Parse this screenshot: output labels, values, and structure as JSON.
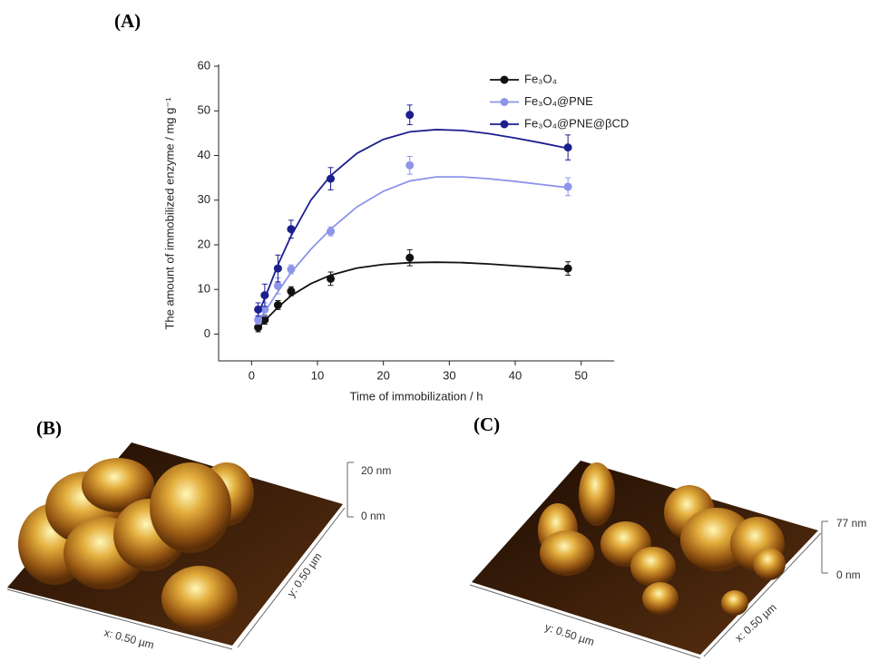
{
  "panel_labels": [
    "(A)",
    "(B)",
    "(C)"
  ],
  "chart_data": {
    "type": "scatter",
    "x_label": "Time of immobilization / h",
    "y_label": "The amount of immobilized enzyme / mg g⁻¹",
    "x": [
      1,
      2,
      4,
      6,
      12,
      24,
      48
    ],
    "series": [
      {
        "name": "Fe₃O₄",
        "color": "#111111",
        "values": [
          1.5,
          3.2,
          6.5,
          9.6,
          12.4,
          17.1,
          14.7
        ],
        "errors": [
          1,
          1,
          1,
          1,
          1.5,
          1.8,
          1.5
        ],
        "fit": {
          "x": [
            1,
            2,
            4,
            6,
            9,
            12,
            16,
            20,
            24,
            28,
            32,
            36,
            40,
            44,
            48
          ],
          "values": [
            1.3,
            3,
            6,
            8.6,
            11.3,
            13.2,
            14.8,
            15.6,
            16,
            16.1,
            16,
            15.7,
            15.3,
            14.9,
            14.5
          ]
        }
      },
      {
        "name": "Fe₃O₄@PNE",
        "color": "#8c95ea",
        "values": [
          3.2,
          5.5,
          10.8,
          14.5,
          23,
          37.8,
          33
        ],
        "errors": [
          1,
          1.5,
          1.8,
          1,
          1,
          2,
          2
        ],
        "fit": {
          "x": [
            1,
            2,
            4,
            6,
            9,
            12,
            16,
            20,
            24,
            28,
            32,
            36,
            40,
            44,
            48
          ],
          "values": [
            3,
            5,
            9.5,
            13.8,
            19,
            23.5,
            28.5,
            32,
            34.3,
            35.2,
            35.2,
            34.8,
            34.2,
            33.5,
            32.8
          ]
        }
      },
      {
        "name": "Fe₃O₄@PNE@βCD",
        "color": "#1c1f8f",
        "values": [
          5.5,
          8.7,
          14.7,
          23.5,
          34.8,
          49.1,
          41.8
        ],
        "errors": [
          1.5,
          2.5,
          3,
          2,
          2.5,
          2.2,
          2.8
        ],
        "fit": {
          "x": [
            1,
            2,
            4,
            6,
            9,
            12,
            16,
            20,
            24,
            28,
            32,
            36,
            40,
            44,
            48
          ],
          "values": [
            4.5,
            8,
            15.5,
            22,
            30,
            35.5,
            40.5,
            43.6,
            45.3,
            45.8,
            45.6,
            44.9,
            43.9,
            42.8,
            41.6
          ]
        }
      }
    ],
    "xlim": [
      -5,
      55
    ],
    "xticks": [
      0,
      10,
      20,
      30,
      40,
      50
    ],
    "ylim": [
      -6,
      60
    ],
    "yticks": [
      0,
      10,
      20,
      30,
      40,
      50,
      60
    ],
    "legend": "upper right"
  },
  "afm": [
    {
      "scale": [
        "20 nm",
        "0 nm"
      ],
      "axes": [
        "x: 0.50 µm",
        "y: 0.50 µm"
      ]
    },
    {
      "scale": [
        "77 nm",
        "0 nm"
      ],
      "axes": [
        "y: 0.50 µm",
        "x: 0.50 µm"
      ]
    }
  ]
}
